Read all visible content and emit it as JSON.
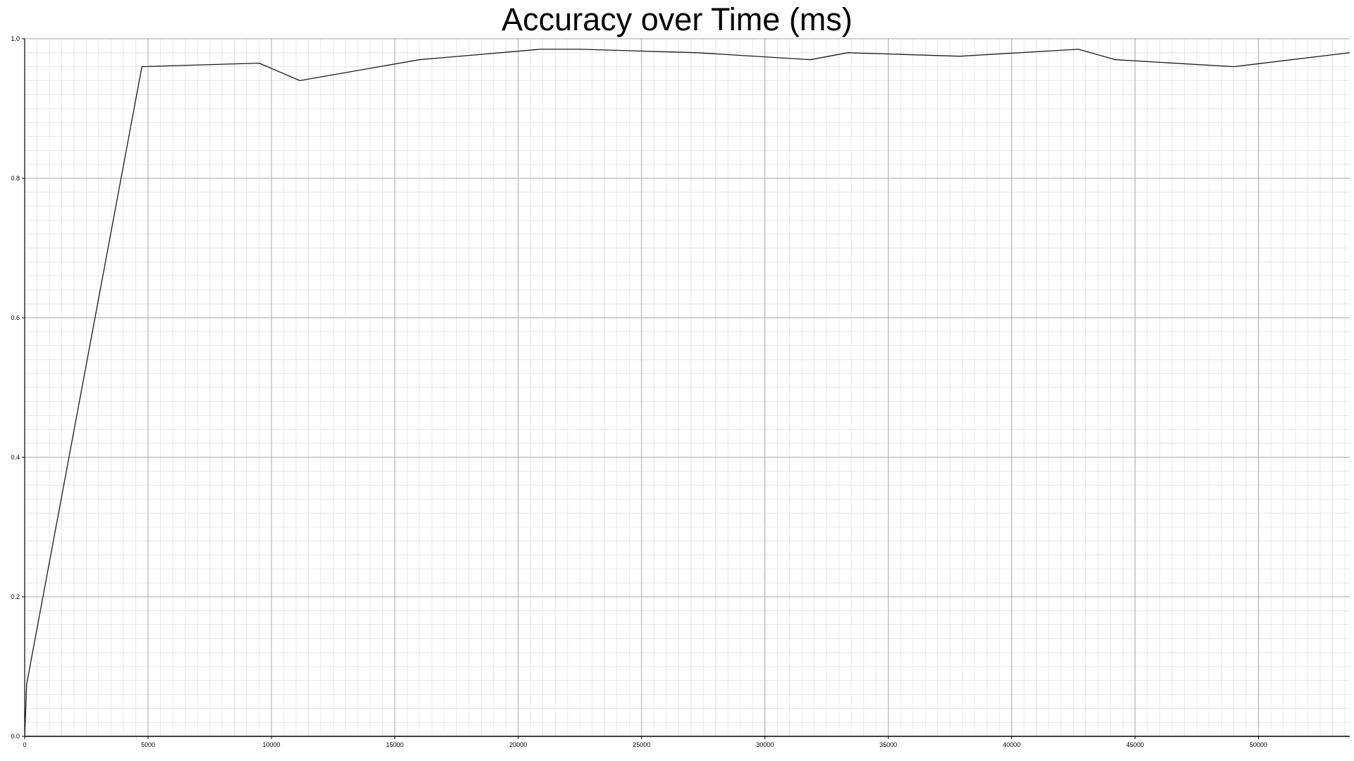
{
  "chart_data": {
    "type": "line",
    "title": "Accuracy over Time (ms)",
    "xlabel": "",
    "ylabel": "",
    "xlim": [
      0,
      53700
    ],
    "ylim": [
      0,
      1.0
    ],
    "x_ticks": [
      0,
      5000,
      10000,
      15000,
      20000,
      25000,
      30000,
      35000,
      40000,
      45000,
      50000
    ],
    "y_ticks": [
      0.0,
      0.2,
      0.4,
      0.6,
      0.8,
      1.0
    ],
    "x_tick_labels": [
      "0",
      "5000",
      "10000",
      "15000",
      "20000",
      "25000",
      "30000",
      "35000",
      "40000",
      "45000",
      "50000"
    ],
    "y_tick_labels": [
      "0.0",
      "0.2",
      "0.4",
      "0.6",
      "0.8",
      "1.0"
    ],
    "grid": true,
    "minor_grid": true,
    "legend": "none",
    "colors": {
      "line": "#1a1a1a",
      "major_grid": "#a8a8a8",
      "minor_grid": "#e2e2e2",
      "axis": "#000000"
    },
    "series": [
      {
        "x": [
          0,
          80,
          4750,
          9500,
          11150,
          16000,
          20900,
          22500,
          27250,
          31850,
          33350,
          37900,
          42700,
          44200,
          49000,
          53700
        ],
        "y": [
          0.0,
          0.075,
          0.96,
          0.965,
          0.94,
          0.97,
          0.985,
          0.985,
          0.98,
          0.97,
          0.98,
          0.975,
          0.985,
          0.97,
          0.96,
          0.98
        ]
      }
    ]
  }
}
